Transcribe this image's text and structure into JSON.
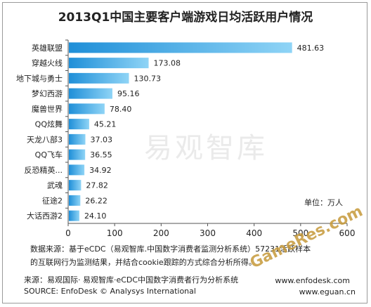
{
  "chart_data": {
    "type": "bar",
    "orientation": "horizontal",
    "title": "2013Q1中国主要客户端游戏日均活跃用户情况",
    "categories": [
      "英雄联盟",
      "穿越火线",
      "地下城与勇士",
      "梦幻西游",
      "魔兽世界",
      "QQ炫舞",
      "天龙八部3",
      "QQ飞车",
      "反恐精英...",
      "武魂",
      "征途2",
      "大话西游2"
    ],
    "values": [
      481.63,
      173.08,
      130.73,
      95.16,
      78.4,
      45.21,
      37.03,
      36.55,
      34.92,
      27.82,
      26.22,
      24.1
    ],
    "value_labels": [
      "481.63",
      "173.08",
      "130.73",
      "95.16",
      "78.40",
      "45.21",
      "37.03",
      "36.55",
      "34.92",
      "27.82",
      "26.22",
      "24.10"
    ],
    "xlim": [
      0,
      600
    ],
    "xticks": [
      "0",
      "100",
      "200",
      "300",
      "400",
      "500",
      "600"
    ],
    "unit_label": "单位：万人",
    "bar_color_start": "#1f8fd8",
    "bar_color_end": "#8fd4f6"
  },
  "watermark": "易观智库",
  "data_source_note": [
    "数据来源：基于eCDC（易观智库.中国数字消费者监测分析系统）57231活跃样本",
    "的互联网行为监测结果，并结合cookie跟踪的方式综合分析所得。"
  ],
  "source_cn": "来源：易观国际· 易观智库·eCDC中国数字消费者行为分析系统",
  "source_en": "SOURCE: EnfoDesk © Analysys International",
  "site_enfodesk": "www.enfodesk.com",
  "site_eguan": "www.eguan.cn",
  "gameres_watermark": "GameRes.com"
}
